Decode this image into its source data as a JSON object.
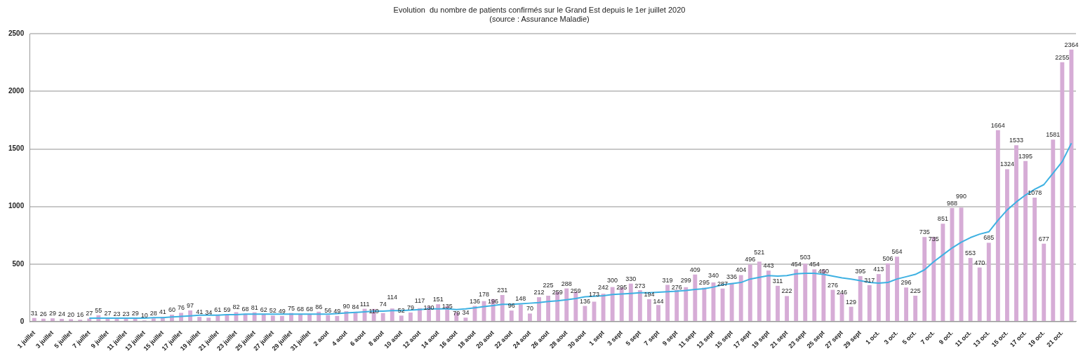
{
  "chart_data": {
    "type": "bar",
    "title": "Evolution  du nombre de patients confirmés sur le Grand Est depuis le 1er juillet 2020",
    "subtitle": "(source : Assurance Maladie)",
    "categories": [
      "1 juillet",
      null,
      "3 juillet",
      null,
      "5 juillet",
      null,
      "7 juillet",
      null,
      "9 juillet",
      null,
      "11 juillet",
      null,
      "13 juillet",
      null,
      "15 juillet",
      null,
      "17 juillet",
      null,
      "19 juillet",
      null,
      "21 juillet",
      null,
      "23 juillet",
      null,
      "25 juillet",
      null,
      "27 juillet",
      null,
      "29 juillet",
      null,
      "31 juillet",
      null,
      "2 aout",
      null,
      "4 aout",
      null,
      "6 aout",
      null,
      "8 aout",
      null,
      "10 aout",
      null,
      "12 aout",
      null,
      "14 aout",
      null,
      "16 aout",
      null,
      "18 aout",
      null,
      "20 aout",
      null,
      "22 aout",
      null,
      "24 aout",
      null,
      "26 aout",
      null,
      "28 aout",
      null,
      "30 aout",
      null,
      "1 sept",
      null,
      "3 sept",
      null,
      "5 sept",
      null,
      "7 sept",
      null,
      "9 sept",
      null,
      "11 sept",
      null,
      "13 sept",
      null,
      "15 sept",
      null,
      "17 sept",
      null,
      "19 sept",
      null,
      "21 sept",
      null,
      "23 sept",
      null,
      "25 sept",
      null,
      "27 sept",
      null,
      "29 sept",
      null,
      "1 oct.",
      null,
      "3 oct.",
      null,
      "5 oct.",
      null,
      "7 oct.",
      null,
      "9 oct.",
      null,
      "11 oct.",
      null,
      "13 oct.",
      null,
      "15 oct.",
      null,
      "17 oct.",
      null,
      "19 oct.",
      null,
      "21 oct.",
      null
    ],
    "series": [
      {
        "type": "bar",
        "color": "#d6acd6",
        "data_labels": true,
        "values": [
          31,
          26,
          29,
          24,
          20,
          16,
          27,
          55,
          27,
          23,
          23,
          29,
          10,
          28,
          41,
          60,
          76,
          97,
          41,
          34,
          61,
          59,
          82,
          68,
          81,
          62,
          52,
          49,
          75,
          68,
          68,
          86,
          56,
          49,
          90,
          84,
          111,
          110,
          74,
          114,
          52,
          79,
          117,
          130,
          151,
          135,
          79,
          34,
          136,
          178,
          196,
          231,
          96,
          148,
          70,
          212,
          225,
          259,
          288,
          259,
          136,
          173,
          242,
          300,
          295,
          330,
          273,
          194,
          144,
          319,
          276,
          299,
          409,
          295,
          340,
          287,
          336,
          404,
          496,
          521,
          443,
          311,
          222,
          454,
          503,
          454,
          450,
          276,
          246,
          129,
          395,
          317,
          413,
          506,
          564,
          296,
          225,
          735,
          735,
          851,
          988,
          990,
          553,
          470,
          685,
          1664,
          1324,
          1533,
          1395,
          1078,
          677,
          1581,
          2255,
          2364
        ]
      },
      {
        "type": "line",
        "color": "#3eb1e2",
        "values": [
          null,
          null,
          null,
          null,
          null,
          null,
          30,
          30,
          30,
          30,
          30,
          30,
          30,
          35,
          35,
          40,
          45,
          50,
          55,
          55,
          55,
          60,
          60,
          65,
          65,
          65,
          65,
          65,
          65,
          65,
          65,
          65,
          65,
          70,
          75,
          80,
          85,
          90,
          90,
          95,
          95,
          100,
          105,
          110,
          110,
          110,
          105,
          110,
          120,
          130,
          140,
          150,
          150,
          155,
          160,
          165,
          175,
          180,
          190,
          200,
          215,
          220,
          225,
          235,
          240,
          245,
          250,
          250,
          255,
          260,
          265,
          270,
          280,
          285,
          300,
          320,
          330,
          340,
          370,
          385,
          400,
          395,
          400,
          415,
          420,
          420,
          410,
          395,
          380,
          370,
          355,
          340,
          335,
          340,
          370,
          390,
          410,
          450,
          520,
          580,
          640,
          690,
          730,
          760,
          780,
          880,
          970,
          1040,
          1100,
          1150,
          1190,
          1290,
          1390,
          1550
        ]
      }
    ],
    "ylim": [
      0,
      2500
    ],
    "yticks": [
      0,
      500,
      1000,
      1500,
      2000,
      2500
    ],
    "grid": "y",
    "legend": false
  }
}
